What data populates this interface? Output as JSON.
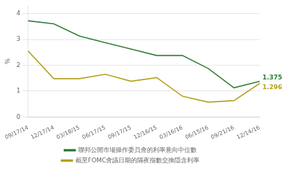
{
  "chart_data": {
    "type": "line",
    "categories": [
      "09/17/14",
      "12/17/14",
      "03/18/15",
      "06/17/15",
      "09/17/15",
      "12/16/15",
      "03/16/16",
      "06/15/16",
      "09/21/16",
      "12/14/16"
    ],
    "series": [
      {
        "name": "聯邦公開市場操作委員會的利率意向中位數",
        "color": "#2d7d32",
        "values": [
          3.72,
          3.6,
          3.125,
          2.875,
          2.625,
          2.375,
          2.375,
          1.875,
          1.125,
          1.375
        ]
      },
      {
        "name": "截至FOMC會議日期的隔夜指數交換隱含利率",
        "color": "#b5a020",
        "values": [
          2.55,
          1.48,
          1.48,
          1.65,
          1.38,
          1.52,
          0.8,
          0.57,
          0.63,
          1.296
        ]
      }
    ],
    "annotations": [
      {
        "text": "1.375",
        "x": "12/14/16",
        "y": 1.375,
        "color": "#2d7d32"
      },
      {
        "text": "1.296",
        "x": "12/14/16",
        "y": 1.296,
        "color": "#b5a020"
      }
    ],
    "ylabel": "%",
    "ylim": [
      0,
      4.3
    ],
    "yticks": [
      0,
      1,
      2,
      3,
      4
    ],
    "grid": true,
    "legend": "bottom"
  }
}
